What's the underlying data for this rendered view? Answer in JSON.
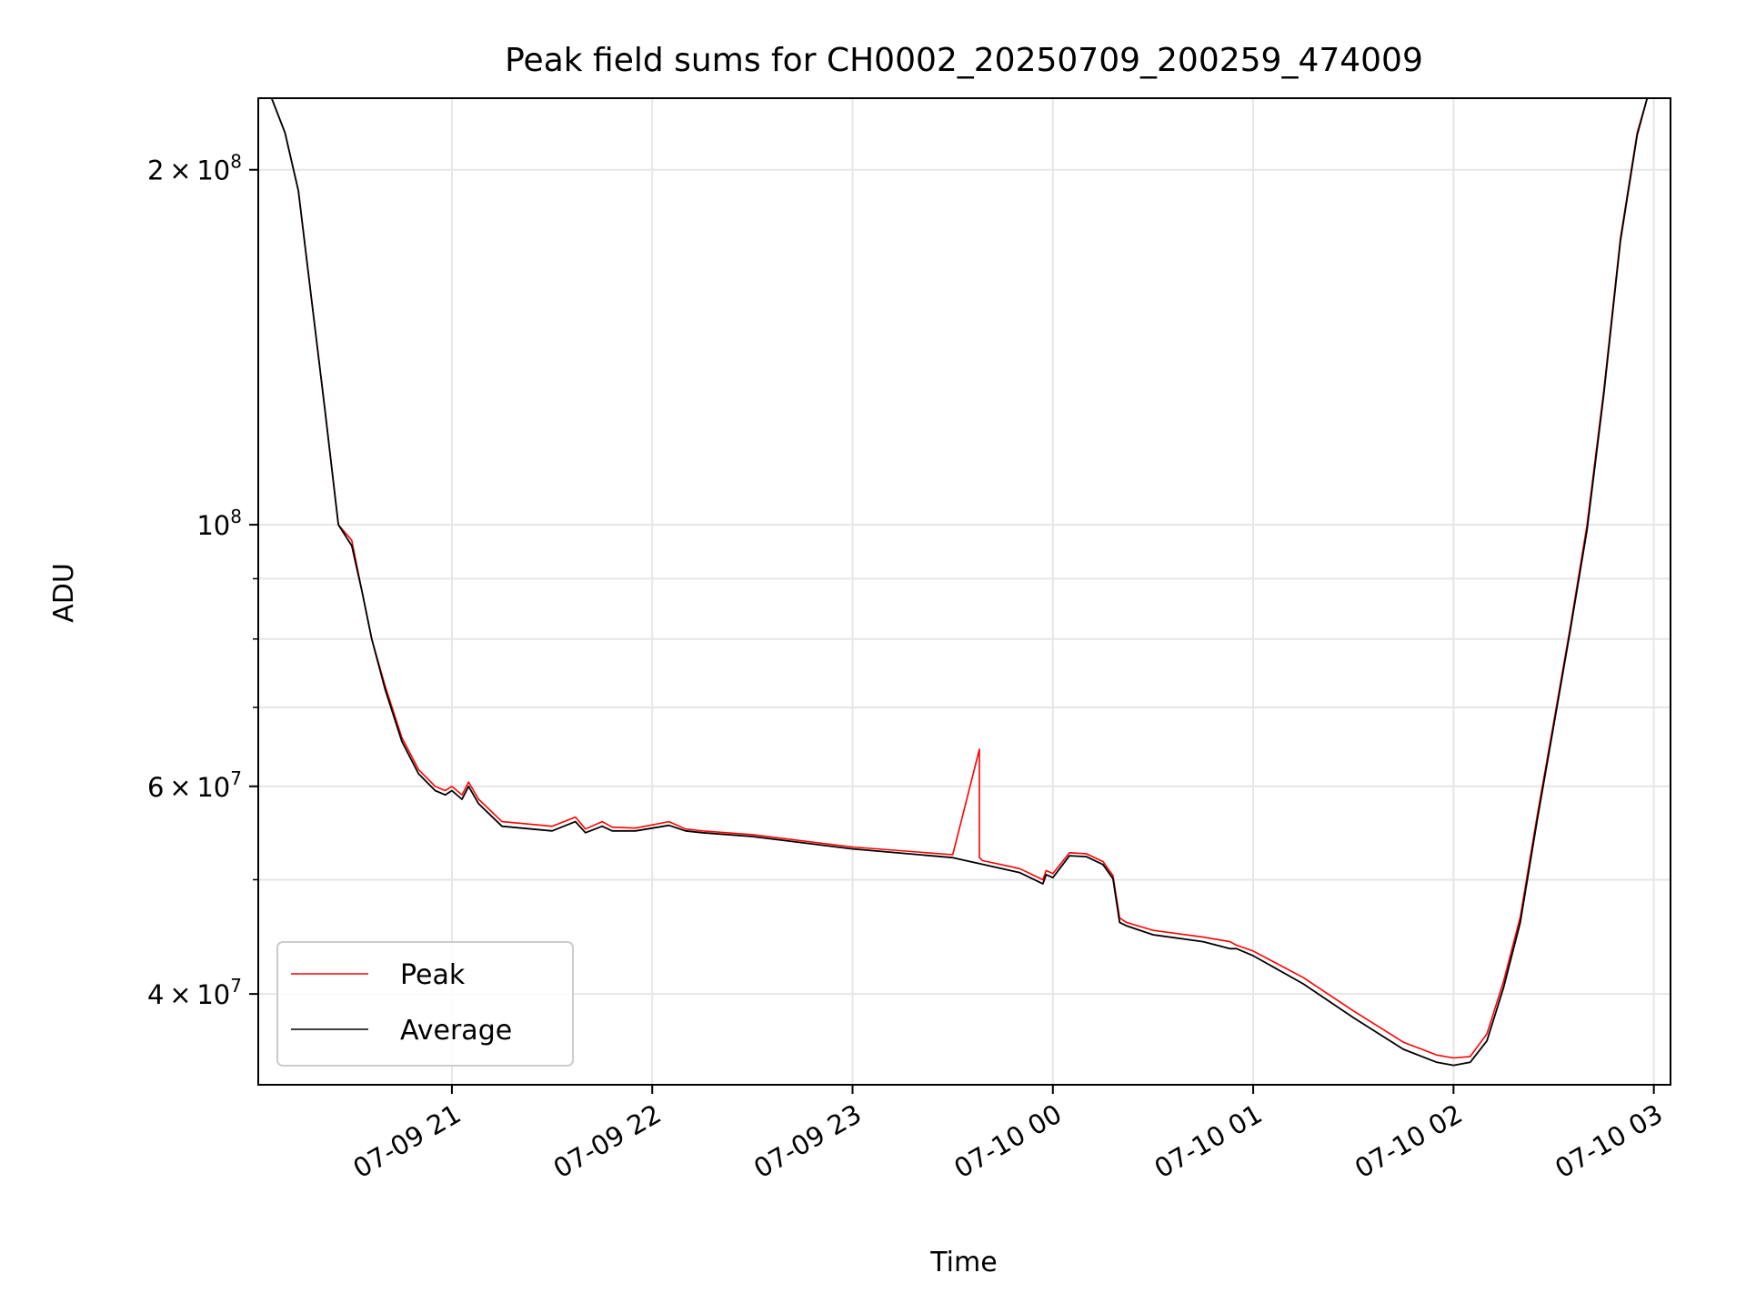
{
  "chart_data": {
    "type": "line",
    "title": "Peak field sums for CH0002_20250709_200259_474009",
    "xlabel": "Time",
    "ylabel": "ADU",
    "yscale": "log",
    "ylim": [
      33500000,
      230000000
    ],
    "x_tick_labels": [
      "07-09 21",
      "07-09 22",
      "07-09 23",
      "07-10 00",
      "07-10 01",
      "07-10 02",
      "07-10 03"
    ],
    "x_tick_times": [
      "2025-07-09 21:00",
      "2025-07-09 22:00",
      "2025-07-09 23:00",
      "2025-07-10 00:00",
      "2025-07-10 01:00",
      "2025-07-10 02:00",
      "2025-07-10 03:00"
    ],
    "x_range": [
      "2025-07-09 20:02",
      "2025-07-10 03:05"
    ],
    "y_major_ticks": [
      {
        "value": 40000000,
        "mantissa": "4",
        "base": "10",
        "exp": "7"
      },
      {
        "value": 60000000,
        "mantissa": "6",
        "base": "10",
        "exp": "7"
      },
      {
        "value": 100000000,
        "mantissa": "",
        "base": "10",
        "exp": "8"
      },
      {
        "value": 200000000,
        "mantissa": "2",
        "base": "10",
        "exp": "8"
      }
    ],
    "y_minor_ticks": [
      50000000,
      70000000,
      80000000,
      90000000
    ],
    "grid": true,
    "legend_position": "lower-left",
    "series": [
      {
        "name": "Peak",
        "color": "#ff0000",
        "x": [
          "2025-07-09 20:02",
          "2025-07-09 20:06",
          "2025-07-09 20:10",
          "2025-07-09 20:14",
          "2025-07-09 20:18",
          "2025-07-09 20:22",
          "2025-07-09 20:26",
          "2025-07-09 20:30",
          "2025-07-09 20:33",
          "2025-07-09 20:36",
          "2025-07-09 20:40",
          "2025-07-09 20:45",
          "2025-07-09 20:50",
          "2025-07-09 20:55",
          "2025-07-09 20:58",
          "2025-07-09 21:00",
          "2025-07-09 21:03",
          "2025-07-09 21:05",
          "2025-07-09 21:08",
          "2025-07-09 21:15",
          "2025-07-09 21:30",
          "2025-07-09 21:37",
          "2025-07-09 21:40",
          "2025-07-09 21:45",
          "2025-07-09 21:48",
          "2025-07-09 21:55",
          "2025-07-09 22:05",
          "2025-07-09 22:10",
          "2025-07-09 22:15",
          "2025-07-09 22:30",
          "2025-07-09 23:00",
          "2025-07-09 23:30",
          "2025-07-09 23:38",
          "2025-07-09 23:38",
          "2025-07-09 23:39",
          "2025-07-09 23:50",
          "2025-07-09 23:57",
          "2025-07-09 23:58",
          "2025-07-10 00:00",
          "2025-07-10 00:05",
          "2025-07-10 00:10",
          "2025-07-10 00:15",
          "2025-07-10 00:18",
          "2025-07-10 00:20",
          "2025-07-10 00:22",
          "2025-07-10 00:30",
          "2025-07-10 00:45",
          "2025-07-10 00:53",
          "2025-07-10 00:55",
          "2025-07-10 01:00",
          "2025-07-10 01:15",
          "2025-07-10 01:30",
          "2025-07-10 01:45",
          "2025-07-10 01:55",
          "2025-07-10 02:00",
          "2025-07-10 02:05",
          "2025-07-10 02:10",
          "2025-07-10 02:15",
          "2025-07-10 02:20",
          "2025-07-10 02:25",
          "2025-07-10 02:30",
          "2025-07-10 02:35",
          "2025-07-10 02:40",
          "2025-07-10 02:45",
          "2025-07-10 02:50",
          "2025-07-10 02:55",
          "2025-07-10 02:58",
          "2025-07-10 03:00"
        ],
        "values": [
          230000000,
          230000000,
          215000000,
          192000000,
          155000000,
          125000000,
          100000000,
          97000000,
          88000000,
          80000000,
          73000000,
          66000000,
          62000000,
          60000000,
          59500000,
          60000000,
          59000000,
          60500000,
          58500000,
          56000000,
          55500000,
          56500000,
          55200000,
          56000000,
          55400000,
          55300000,
          56000000,
          55200000,
          55000000,
          54600000,
          53300000,
          52500000,
          64500000,
          52200000,
          51900000,
          51100000,
          50000000,
          50900000,
          50600000,
          52700000,
          52600000,
          51800000,
          50400000,
          46400000,
          46000000,
          45300000,
          44700000,
          44300000,
          44000000,
          43500000,
          41300000,
          38700000,
          36400000,
          35500000,
          35300000,
          35400000,
          37000000,
          41000000,
          46500000,
          56500000,
          68000000,
          82000000,
          100000000,
          130000000,
          175000000,
          215000000,
          230000000,
          230000000
        ]
      },
      {
        "name": "Average",
        "color": "#000000",
        "x": [
          "2025-07-09 20:02",
          "2025-07-09 20:06",
          "2025-07-09 20:10",
          "2025-07-09 20:14",
          "2025-07-09 20:18",
          "2025-07-09 20:22",
          "2025-07-09 20:26",
          "2025-07-09 20:30",
          "2025-07-09 20:33",
          "2025-07-09 20:36",
          "2025-07-09 20:40",
          "2025-07-09 20:45",
          "2025-07-09 20:50",
          "2025-07-09 20:55",
          "2025-07-09 20:58",
          "2025-07-09 21:00",
          "2025-07-09 21:03",
          "2025-07-09 21:05",
          "2025-07-09 21:08",
          "2025-07-09 21:15",
          "2025-07-09 21:30",
          "2025-07-09 21:37",
          "2025-07-09 21:40",
          "2025-07-09 21:45",
          "2025-07-09 21:48",
          "2025-07-09 21:55",
          "2025-07-09 22:05",
          "2025-07-09 22:10",
          "2025-07-09 22:15",
          "2025-07-09 22:30",
          "2025-07-09 23:00",
          "2025-07-09 23:30",
          "2025-07-09 23:50",
          "2025-07-09 23:57",
          "2025-07-09 23:58",
          "2025-07-10 00:00",
          "2025-07-10 00:05",
          "2025-07-10 00:10",
          "2025-07-10 00:15",
          "2025-07-10 00:18",
          "2025-07-10 00:20",
          "2025-07-10 00:22",
          "2025-07-10 00:30",
          "2025-07-10 00:45",
          "2025-07-10 00:53",
          "2025-07-10 00:55",
          "2025-07-10 01:00",
          "2025-07-10 01:15",
          "2025-07-10 01:30",
          "2025-07-10 01:45",
          "2025-07-10 01:55",
          "2025-07-10 02:00",
          "2025-07-10 02:05",
          "2025-07-10 02:10",
          "2025-07-10 02:15",
          "2025-07-10 02:20",
          "2025-07-10 02:25",
          "2025-07-10 02:30",
          "2025-07-10 02:35",
          "2025-07-10 02:40",
          "2025-07-10 02:45",
          "2025-07-10 02:50",
          "2025-07-10 02:55",
          "2025-07-10 02:58",
          "2025-07-10 03:00"
        ],
        "values": [
          230000000,
          230000000,
          215000000,
          192000000,
          155000000,
          125000000,
          100000000,
          96000000,
          88000000,
          80000000,
          72500000,
          65500000,
          61500000,
          59500000,
          59000000,
          59500000,
          58500000,
          60000000,
          58000000,
          55500000,
          55000000,
          56000000,
          54800000,
          55500000,
          55000000,
          55000000,
          55600000,
          55000000,
          54800000,
          54400000,
          53100000,
          52200000,
          50700000,
          49600000,
          50500000,
          50200000,
          52400000,
          52300000,
          51500000,
          50100000,
          46000000,
          45700000,
          44900000,
          44300000,
          43700000,
          43700000,
          43100000,
          40800000,
          38200000,
          35900000,
          35000000,
          34800000,
          35000000,
          36500000,
          40500000,
          46000000,
          56000000,
          67500000,
          81500000,
          99000000,
          129000000,
          174000000,
          214000000,
          230000000,
          230000000
        ]
      }
    ]
  }
}
